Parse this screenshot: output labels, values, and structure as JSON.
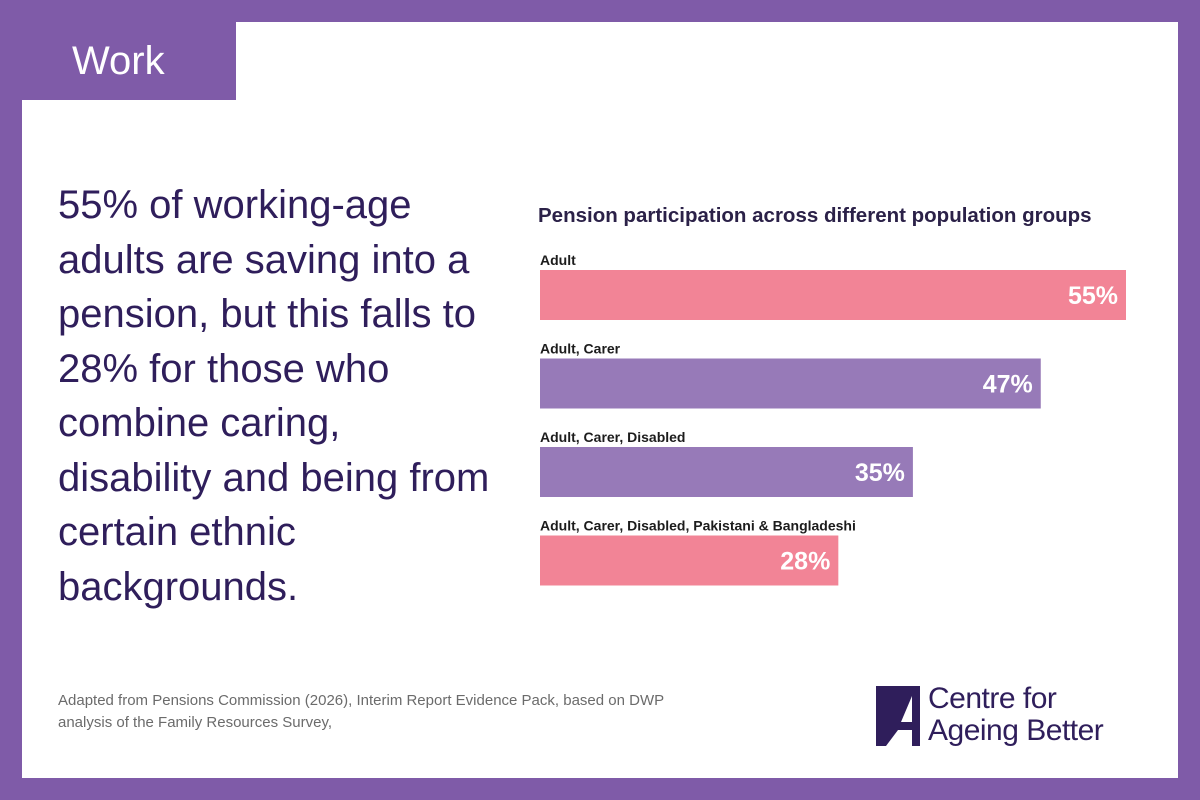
{
  "tag_label": "Work",
  "headline": "55% of working-age adults are saving into a pension, but this falls to 28% for those who combine caring, disability and being from certain ethnic backgrounds.",
  "footnote": {
    "line1": "Adapted from Pensions Commission (2026), Interim Report Evidence Pack, based on DWP",
    "line2": "analysis of the Family Resources Survey,"
  },
  "logo": {
    "line1": "Centre for",
    "line2": "Ageing Better",
    "mark_icon": "centre-for-ageing-better-logo-icon"
  },
  "colors": {
    "frame": "#7f5ba8",
    "pink": "#f28496",
    "purple": "#977ab8",
    "dark_text": "#2f1e5b"
  },
  "chart_data": {
    "type": "bar",
    "orientation": "horizontal",
    "title": "Pension participation across different population groups",
    "categories": [
      "Adult",
      "Adult, Carer",
      "Adult, Carer, Disabled",
      "Adult, Carer, Disabled, Pakistani & Bangladeshi"
    ],
    "values": [
      55,
      47,
      35,
      28
    ],
    "value_labels": [
      "55%",
      "47%",
      "35%",
      "28%"
    ],
    "bar_colors": [
      "#f28496",
      "#977ab8",
      "#977ab8",
      "#f28496"
    ],
    "unit": "%",
    "xlim": [
      0,
      55
    ],
    "grid": false
  }
}
